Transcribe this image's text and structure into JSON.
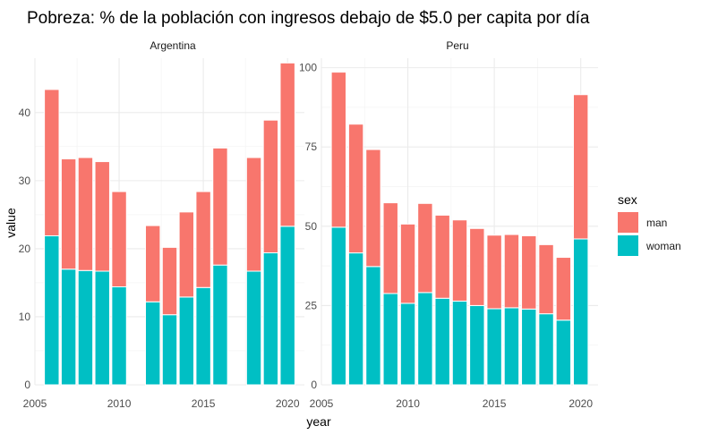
{
  "chart_data": {
    "type": "bar",
    "stacked": true,
    "title": "Pobreza: % de la población con ingresos debajo de $5.0 per capita por día",
    "xlabel": "year",
    "ylabel": "value",
    "legend": {
      "title": "sex",
      "placement": "right",
      "items": [
        {
          "label": "man",
          "color": "#F8766D"
        },
        {
          "label": "woman",
          "color": "#00BFC4"
        }
      ]
    },
    "grid": true,
    "xlim": [
      2005,
      2021
    ],
    "x_ticks": [
      2005,
      2010,
      2015,
      2020
    ],
    "panels": [
      {
        "name": "Argentina",
        "ylim": [
          0,
          48
        ],
        "y_ticks": [
          0,
          10,
          20,
          30,
          40
        ],
        "x": [
          2006,
          2007,
          2008,
          2009,
          2010,
          2012,
          2013,
          2014,
          2015,
          2016,
          2018,
          2019,
          2020
        ],
        "series": [
          {
            "name": "woman",
            "color": "#00BFC4",
            "values": [
              21.9,
              17.0,
              16.8,
              16.7,
              14.4,
              12.2,
              10.3,
              12.9,
              14.3,
              17.6,
              16.7,
              19.4,
              23.3
            ]
          },
          {
            "name": "man",
            "color": "#F8766D",
            "values": [
              21.5,
              16.2,
              16.6,
              16.1,
              14.0,
              11.2,
              9.9,
              12.5,
              14.1,
              17.2,
              16.7,
              19.5,
              24.0
            ]
          }
        ]
      },
      {
        "name": "Peru",
        "ylim": [
          0,
          103
        ],
        "y_ticks": [
          0,
          25,
          50,
          75,
          100
        ],
        "x": [
          2006,
          2007,
          2008,
          2009,
          2010,
          2011,
          2012,
          2013,
          2014,
          2015,
          2016,
          2017,
          2018,
          2019,
          2020
        ],
        "series": [
          {
            "name": "woman",
            "color": "#00BFC4",
            "values": [
              49.7,
              41.6,
              37.3,
              28.8,
              25.7,
              29.1,
              27.3,
              26.4,
              25.0,
              24.0,
              24.3,
              23.9,
              22.4,
              20.4,
              46.0
            ]
          },
          {
            "name": "man",
            "color": "#F8766D",
            "values": [
              48.9,
              40.6,
              36.9,
              28.6,
              25.0,
              28.1,
              26.2,
              25.6,
              24.3,
              23.2,
              23.1,
              23.1,
              21.8,
              19.8,
              45.5
            ]
          }
        ]
      }
    ]
  }
}
